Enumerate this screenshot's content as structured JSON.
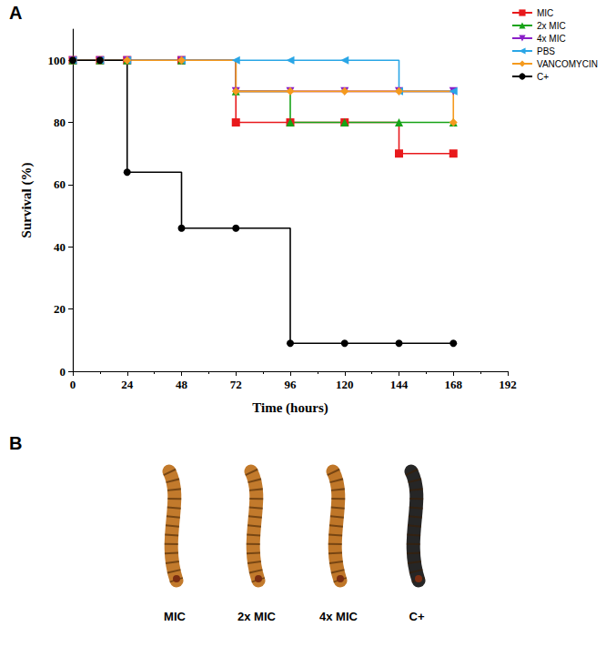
{
  "chart_data": {
    "type": "line",
    "panel_label": "A",
    "x_label": "Time (hours)",
    "y_label": "Survival (%)",
    "x": [
      0,
      12,
      24,
      48,
      72,
      96,
      120,
      144,
      168
    ],
    "series": [
      {
        "name": "MIC",
        "color": "#e8191c",
        "marker": "square",
        "values": [
          100,
          100,
          100,
          100,
          80,
          80,
          80,
          70,
          70
        ]
      },
      {
        "name": "2x MIC",
        "color": "#17a317",
        "marker": "triangle",
        "values": [
          100,
          100,
          100,
          100,
          90,
          80,
          80,
          80,
          80
        ]
      },
      {
        "name": "4x MIC",
        "color": "#8a1fc8",
        "marker": "triangle-down",
        "values": [
          100,
          100,
          100,
          100,
          90,
          90,
          90,
          90,
          90
        ]
      },
      {
        "name": "PBS",
        "color": "#2aa6e6",
        "marker": "triangle-left",
        "values": [
          100,
          100,
          100,
          100,
          100,
          100,
          100,
          90,
          90
        ]
      },
      {
        "name": "VANCOMYCIN",
        "color": "#f59a1e",
        "marker": "diamond",
        "values": [
          100,
          100,
          100,
          100,
          90,
          90,
          90,
          90,
          80
        ]
      },
      {
        "name": "C+",
        "color": "#000000",
        "marker": "circle",
        "values": [
          100,
          100,
          64,
          46,
          46,
          9,
          9,
          9,
          9
        ]
      }
    ],
    "line_style": "step",
    "xlim": [
      0,
      192
    ],
    "xticks": [
      0,
      24,
      48,
      72,
      96,
      120,
      144,
      168,
      192
    ],
    "ylim": [
      0,
      110
    ],
    "yticks": [
      0,
      20,
      40,
      60,
      80,
      100
    ],
    "grid": false,
    "legend": "top-right"
  },
  "panel_b": {
    "panel_label": "B",
    "items": [
      {
        "label": "MIC",
        "color": "#c27a2c"
      },
      {
        "label": "2x MIC",
        "color": "#c27a2c"
      },
      {
        "label": "4x MIC",
        "color": "#bf7628"
      },
      {
        "label": "C+",
        "color": "#262626"
      }
    ]
  }
}
